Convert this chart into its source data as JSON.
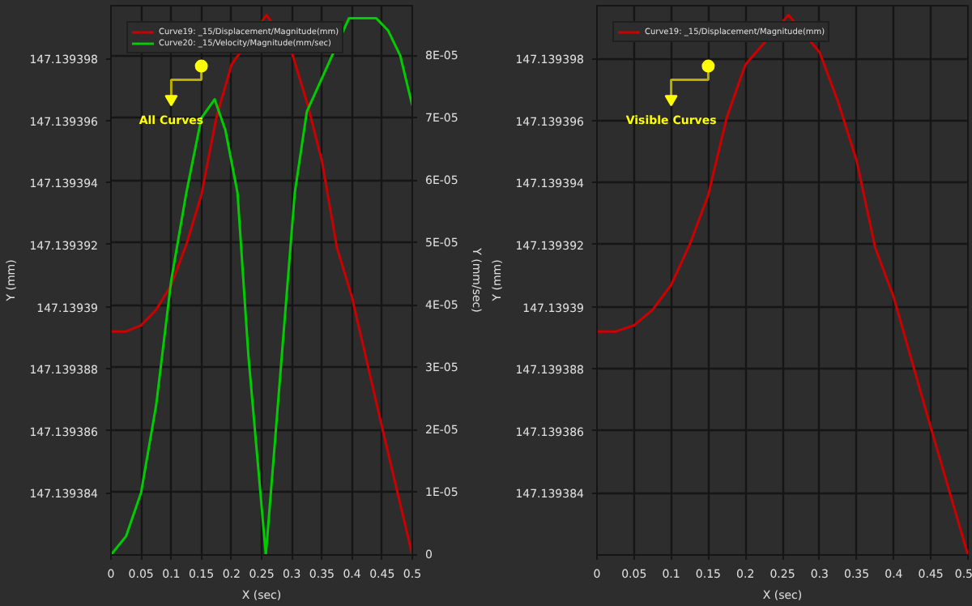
{
  "chart_data": [
    {
      "type": "line",
      "xlabel": "X (sec)",
      "ylabel": "Y (mm)",
      "y2label": "Y (mm/sec)",
      "annotations": [
        "All Curves"
      ],
      "legend": "top left",
      "grid": true,
      "marker": "none",
      "line_style": "solid",
      "xlim": [
        0,
        0.5
      ],
      "xticks": [
        0,
        0.05,
        0.1,
        0.15,
        0.2,
        0.25,
        0.3,
        0.35,
        0.4,
        0.45,
        0.5
      ],
      "ylim": [
        147.139382,
        147.1393997
      ],
      "yticks": [
        147.139384,
        147.139386,
        147.139388,
        147.13939,
        147.139392,
        147.139394,
        147.139396,
        147.139398
      ],
      "y2lim": [
        0,
        8.8e-05
      ],
      "y2ticks": [
        0,
        {
          "value": 1e-05,
          "label": "1E-05"
        },
        {
          "value": 2e-05,
          "label": "2E-05"
        },
        {
          "value": 3e-05,
          "label": "3E-05"
        },
        {
          "value": 4e-05,
          "label": "4E-05"
        },
        {
          "value": 5e-05,
          "label": "5E-05"
        },
        {
          "value": 6e-05,
          "label": "6E-05"
        },
        {
          "value": 7e-05,
          "label": "7E-05"
        },
        {
          "value": 8e-05,
          "label": "8E-05"
        }
      ],
      "series": [
        {
          "name": "Curve19: _15/Displacement/Magnitude(mm)",
          "color": "#cc0000",
          "x": [
            0,
            0.025,
            0.05,
            0.075,
            0.1,
            0.125,
            0.15,
            0.175,
            0.2,
            0.258,
            0.3,
            0.325,
            0.35,
            0.375,
            0.4,
            0.45,
            0.5
          ],
          "values": [
            147.1393892,
            147.1393892,
            147.1393894,
            147.1393899,
            147.1393907,
            147.139392,
            147.1393936,
            147.1393961,
            147.1393978,
            147.1393994,
            147.1393982,
            147.1393966,
            147.1393947,
            147.1393919,
            147.1393903,
            147.1393861,
            147.139382
          ]
        },
        {
          "name": "Curve20: _15/Velocity/Magnitude(mm/sec)",
          "color": "#00cc00",
          "axis": "y2",
          "x": [
            0,
            0.025,
            0.05,
            0.075,
            0.1,
            0.125,
            0.15,
            0.172,
            0.19,
            0.21,
            0.228,
            0.257,
            0.272,
            0.305,
            0.325,
            0.395,
            0.409,
            0.44,
            0.46,
            0.48,
            0.5
          ],
          "values": [
            0,
            3e-06,
            1e-05,
            2.4e-05,
            4.4e-05,
            5.8e-05,
            7e-05,
            7.3e-05,
            6.8e-05,
            5.8e-05,
            3.2e-05,
            0,
            1.8e-05,
            5.8e-05,
            7.1e-05,
            8.6e-05,
            8.6e-05,
            8.6e-05,
            8.4e-05,
            8e-05,
            7.2e-05
          ]
        }
      ]
    },
    {
      "type": "line",
      "xlabel": "X (sec)",
      "ylabel": "Y (mm)",
      "annotations": [
        "Visible Curves"
      ],
      "legend": "top left",
      "grid": true,
      "marker": "none",
      "line_style": "solid",
      "xlim": [
        0,
        0.5
      ],
      "xticks": [
        0,
        0.05,
        0.1,
        0.15,
        0.2,
        0.25,
        0.3,
        0.35,
        0.4,
        0.45,
        0.5
      ],
      "ylim": [
        147.139382,
        147.1393997
      ],
      "yticks": [
        147.139384,
        147.139386,
        147.139388,
        147.13939,
        147.139392,
        147.139394,
        147.139396,
        147.139398
      ],
      "series": [
        {
          "name": "Curve19: _15/Displacement/Magnitude(mm)",
          "color": "#cc0000",
          "x": [
            0,
            0.025,
            0.05,
            0.075,
            0.1,
            0.125,
            0.15,
            0.175,
            0.2,
            0.258,
            0.3,
            0.325,
            0.35,
            0.375,
            0.4,
            0.45,
            0.5
          ],
          "values": [
            147.1393892,
            147.1393892,
            147.1393894,
            147.1393899,
            147.1393907,
            147.139392,
            147.1393936,
            147.1393961,
            147.1393978,
            147.1393994,
            147.1393982,
            147.1393966,
            147.1393947,
            147.1393919,
            147.1393903,
            147.1393861,
            147.139382
          ]
        }
      ]
    }
  ]
}
